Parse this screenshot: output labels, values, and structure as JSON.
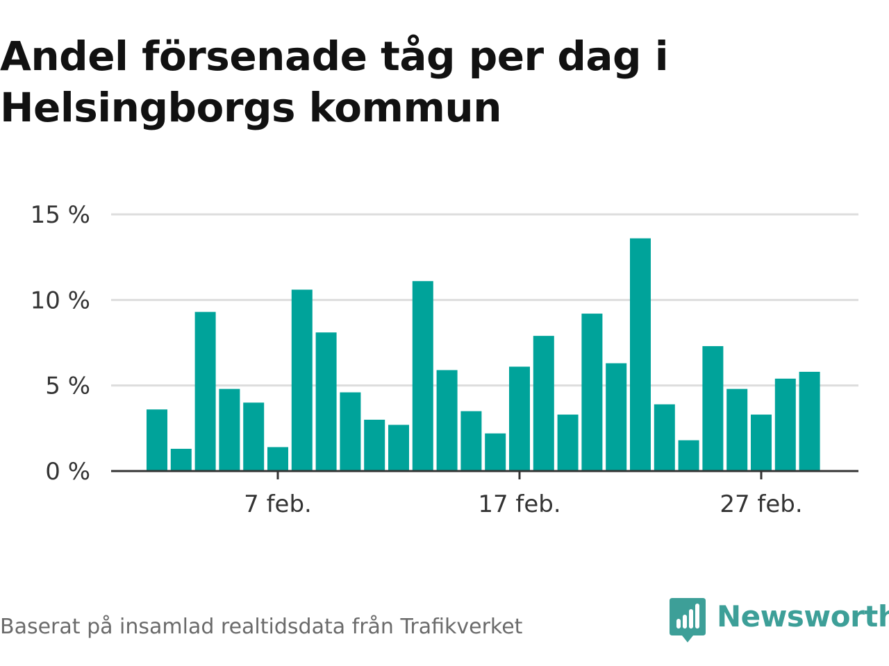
{
  "title": "Andel försenade tåg per dag i Helsingborgs kommun",
  "source": "Baserat på insamlad realtidsdata från Trafikverket",
  "brand": {
    "name": "Newsworthy",
    "logo_icon": "bar-chart-speech-bubble-icon",
    "color": "#3d9f98"
  },
  "chart_data": {
    "type": "bar",
    "title": "Andel försenade tåg per dag i Helsingborgs kommun",
    "xlabel": "",
    "ylabel": "",
    "unit": "%",
    "ylim": [
      0,
      15
    ],
    "grid": true,
    "legend": "none",
    "color": "#00a39a",
    "y_ticks": [
      {
        "value": 0,
        "label": "0 %"
      },
      {
        "value": 5,
        "label": "5 %"
      },
      {
        "value": 10,
        "label": "10 %"
      },
      {
        "value": 15,
        "label": "15 %"
      }
    ],
    "x_ticks": [
      {
        "index": 5,
        "label": "7 feb."
      },
      {
        "index": 15,
        "label": "17 feb."
      },
      {
        "index": 25,
        "label": "27 feb."
      }
    ],
    "categories": [
      "2 feb.",
      "3 feb.",
      "4 feb.",
      "5 feb.",
      "6 feb.",
      "7 feb.",
      "8 feb.",
      "9 feb.",
      "10 feb.",
      "11 feb.",
      "12 feb.",
      "13 feb.",
      "14 feb.",
      "15 feb.",
      "16 feb.",
      "17 feb.",
      "18 feb.",
      "19 feb.",
      "20 feb.",
      "21 feb.",
      "22 feb.",
      "23 feb.",
      "24 feb.",
      "25 feb.",
      "26 feb.",
      "27 feb.",
      "28 feb.",
      "29 feb."
    ],
    "values": [
      3.6,
      1.3,
      9.3,
      4.8,
      4.0,
      1.4,
      10.6,
      8.1,
      4.6,
      3.0,
      2.7,
      11.1,
      5.9,
      3.5,
      2.2,
      6.1,
      7.9,
      3.3,
      9.2,
      6.3,
      13.6,
      3.9,
      1.8,
      7.3,
      4.8,
      3.3,
      5.4,
      5.8
    ]
  }
}
